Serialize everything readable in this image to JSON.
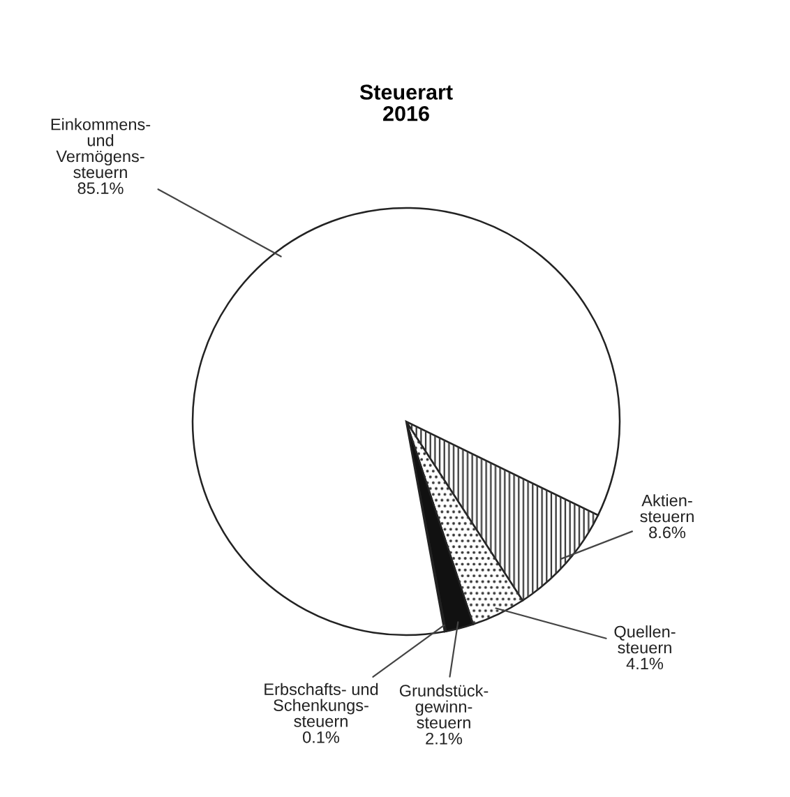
{
  "chart_data": {
    "type": "pie",
    "title": "Steuerart\n2016",
    "categories": [
      "Aktien-\nsteuern",
      "Quellen-\nsteuern",
      "Grundstück-\ngewinn-\nsteuern",
      "Erbschafts- und\nSchenkungs-\nsteuern",
      "Einkommens-\nund\nVermögens-\nsteuern"
    ],
    "values": [
      8.6,
      4.1,
      2.1,
      0.1,
      85.1
    ],
    "value_labels": [
      "8.6%",
      "4.1%",
      "2.1%",
      "0.1%",
      "85.1%"
    ],
    "colors": [
      "#ffffff",
      "#ffffff",
      "#111111",
      "#111111",
      "#ffffff"
    ]
  }
}
